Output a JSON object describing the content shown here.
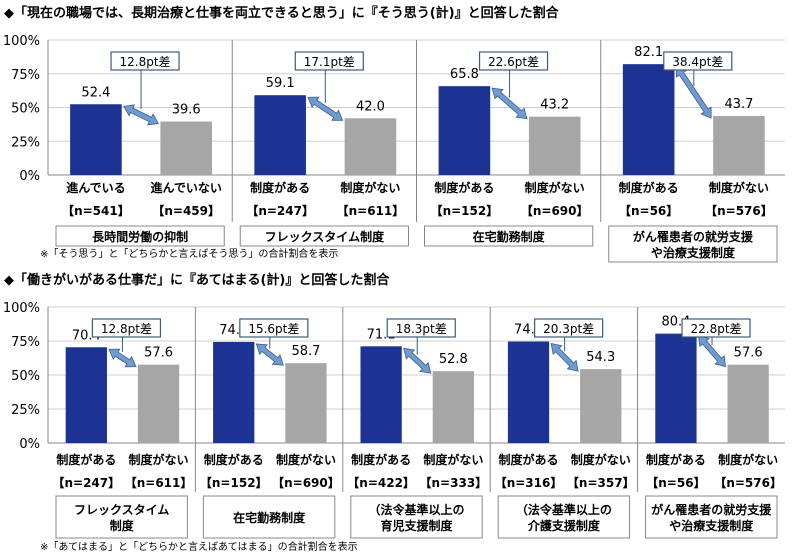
{
  "colors": {
    "with": "#1c3393",
    "without": "#a6a6a6",
    "arrow": "#6f9bd1",
    "arrow_edge": "#3c5f8f",
    "box_edge": "#3c5a7a"
  },
  "chart_data": [
    {
      "type": "bar",
      "title": "◆「現在の職場では、長期治療と仕事を両立できると思う」に『そう思う(計)』と回答した割合",
      "ylim": [
        0,
        100
      ],
      "yticks": [
        "0%",
        "25%",
        "50%",
        "75%",
        "100%"
      ],
      "grid": true,
      "footnote": "※「そう思う」と「どちらかと言えばそう思う」の合計割合を表示",
      "groups": [
        {
          "category": "長時間労働の抑制",
          "diff_label": "12.8pt差",
          "bars": [
            {
              "label": "進んでいる",
              "n": "【n=541】",
              "value": 52.4
            },
            {
              "label": "進んでいない",
              "n": "【n=459】",
              "value": 39.6
            }
          ]
        },
        {
          "category": "フレックスタイム制度",
          "diff_label": "17.1pt差",
          "bars": [
            {
              "label": "制度がある",
              "n": "【n=247】",
              "value": 59.1
            },
            {
              "label": "制度がない",
              "n": "【n=611】",
              "value": 42.0
            }
          ]
        },
        {
          "category": "在宅勤務制度",
          "diff_label": "22.6pt差",
          "bars": [
            {
              "label": "制度がある",
              "n": "【n=152】",
              "value": 65.8
            },
            {
              "label": "制度がない",
              "n": "【n=690】",
              "value": 43.2
            }
          ]
        },
        {
          "category": "がん罹患者の就労支援\nや治療支援制度",
          "diff_label": "38.4pt差",
          "bars": [
            {
              "label": "制度がある",
              "n": "【n=56】",
              "value": 82.1
            },
            {
              "label": "制度がない",
              "n": "【n=576】",
              "value": 43.7
            }
          ]
        }
      ]
    },
    {
      "type": "bar",
      "title": "◆「働きがいがある仕事だ」に『あてはまる(計)』と回答した割合",
      "ylim": [
        0,
        100
      ],
      "yticks": [
        "0%",
        "25%",
        "50%",
        "75%",
        "100%"
      ],
      "grid": true,
      "footnote": "※「あてはまる」と「どちらかと言えばあてはまる」の合計割合を表示",
      "groups": [
        {
          "category": "フレックスタイム\n制度",
          "diff_label": "12.8pt差",
          "bars": [
            {
              "label": "制度がある",
              "n": "【n=247】",
              "value": 70.4
            },
            {
              "label": "制度がない",
              "n": "【n=611】",
              "value": 57.6
            }
          ]
        },
        {
          "category": "在宅勤務制度",
          "diff_label": "15.6pt差",
          "bars": [
            {
              "label": "制度がある",
              "n": "【n=152】",
              "value": 74.3
            },
            {
              "label": "制度がない",
              "n": "【n=690】",
              "value": 58.7
            }
          ]
        },
        {
          "category": "（法令基準以上の\n育児支援制度",
          "diff_label": "18.3pt差",
          "bars": [
            {
              "label": "制度がある",
              "n": "【n=422】",
              "value": 71.1
            },
            {
              "label": "制度がない",
              "n": "【n=333】",
              "value": 52.8
            }
          ]
        },
        {
          "category": "（法令基準以上の\n介護支援制度",
          "diff_label": "20.3pt差",
          "bars": [
            {
              "label": "制度がある",
              "n": "【n=316】",
              "value": 74.6
            },
            {
              "label": "制度がない",
              "n": "【n=357】",
              "value": 54.3
            }
          ]
        },
        {
          "category": "がん罹患者の就労支援\nや治療支援制度",
          "diff_label": "22.8pt差",
          "bars": [
            {
              "label": "制度がある",
              "n": "【n=56】",
              "value": 80.4
            },
            {
              "label": "制度がない",
              "n": "【n=576】",
              "value": 57.6
            }
          ]
        }
      ]
    }
  ]
}
